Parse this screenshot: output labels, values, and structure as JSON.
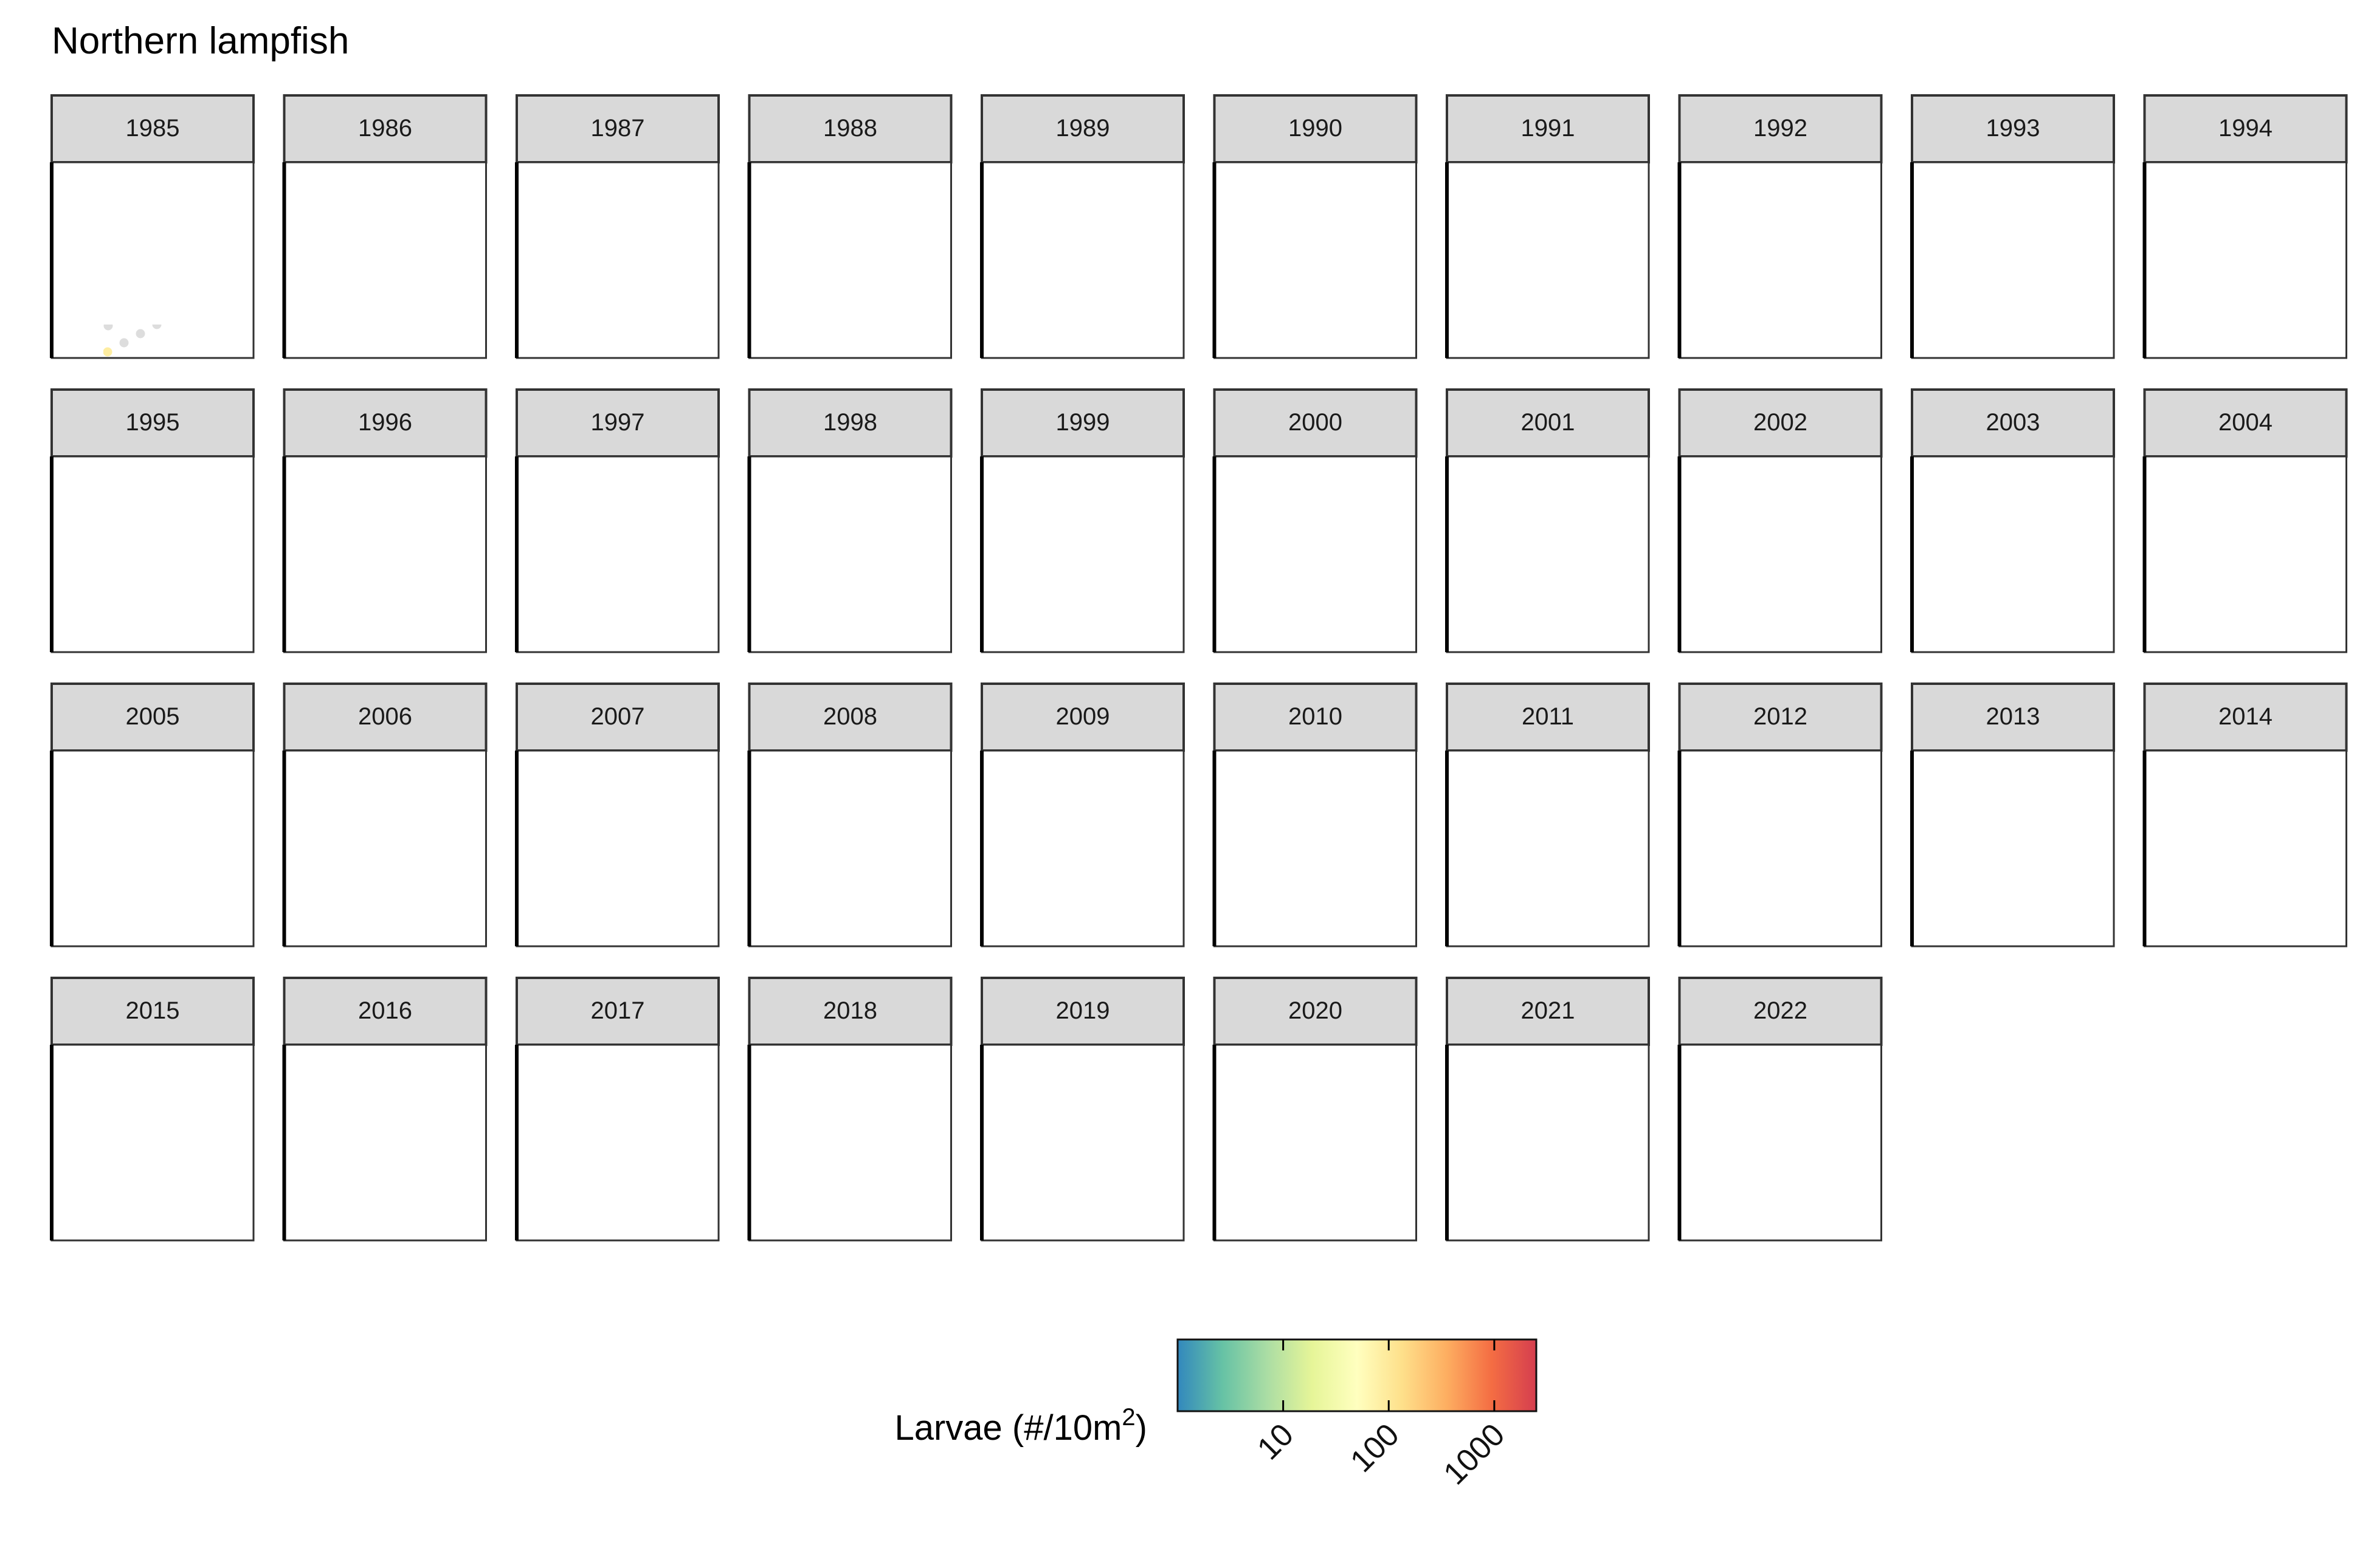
{
  "chart_data": {
    "type": "scatter",
    "title": "Northern lampfish",
    "facets": [
      "1985",
      "1986",
      "1987",
      "1988",
      "1989",
      "1990",
      "1991",
      "1992",
      "1993",
      "1994",
      "1995",
      "1996",
      "1997",
      "1998",
      "1999",
      "2000",
      "2001",
      "2002",
      "2003",
      "2004",
      "2005",
      "2006",
      "2007",
      "2008",
      "2009",
      "2010",
      "2011",
      "2012",
      "2013",
      "2014",
      "2015",
      "2016",
      "2017",
      "2018",
      "2019",
      "2020",
      "2021",
      "2022"
    ],
    "panel_grid": {
      "columns": 10,
      "rows": 4
    },
    "legend": {
      "title": "Larvae (#/10m",
      "superscript": "2",
      "title_close": ")",
      "scale": "log10",
      "domain": [
        1,
        2500
      ],
      "ticks": [
        10,
        100,
        1000
      ],
      "tick_labels": [
        "10",
        "100",
        "1000"
      ],
      "palette": [
        "#3288bd",
        "#66c2a5",
        "#abdda4",
        "#e6f598",
        "#ffffbf",
        "#fee08b",
        "#fdae61",
        "#f46d43",
        "#d53e4f"
      ],
      "position": "bottom"
    },
    "marks": {
      "zero_catch_color": "#dddddd",
      "not_sampled_symbol": "x",
      "land_color": "#8f8f8f",
      "strip_fill": "#d9d9d9"
    }
  }
}
